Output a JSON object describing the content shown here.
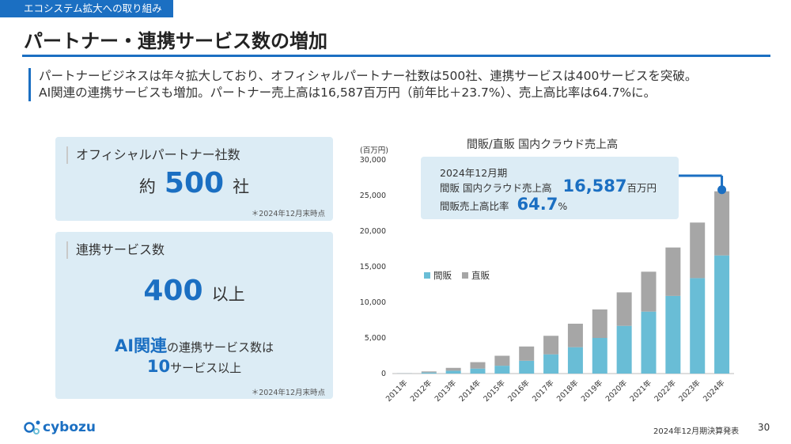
{
  "header": {
    "section_tag": "エコシステム拡大への取り組み",
    "title": "パートナー・連携サービス数の増加"
  },
  "summary": {
    "line1": "パートナービジネスは年々拡大しており、オフィシャルパートナー社数は500社、連携サービスは400サービスを突破。",
    "line2": "AI関連の連携サービスも増加。パートナー売上高は16,587百万円（前年比＋23.7%）、売上高比率は64.7%に。"
  },
  "partners_card": {
    "label": "オフィシャルパートナー社数",
    "prefix": "約",
    "value": "500",
    "suffix": "社",
    "note": "＊2024年12月末時点"
  },
  "services_card": {
    "label": "連携サービス数",
    "value": "400",
    "suffix": "以上",
    "ai_highlight": "AI関連",
    "ai_text": "の連携サービス数は",
    "ai_value": "10",
    "ai_suffix": "サービス以上",
    "note": "＊2024年12月末時点"
  },
  "callout": {
    "period": "2024年12月期",
    "sales_label": "間販 国内クラウド売上高",
    "sales_value": "16,587",
    "sales_unit": "百万円",
    "ratio_label": "間販売上高比率",
    "ratio_value": "64.7",
    "ratio_unit": "%"
  },
  "footer": {
    "logo": "cybozu",
    "doc": "2024年12月期決算発表",
    "page": "30"
  },
  "colors": {
    "accent": "#1b6fc2",
    "indirect": "#69bdd6",
    "direct": "#a6a6a6",
    "card_bg": "#dcecf5"
  },
  "chart_data": {
    "type": "bar",
    "stacked": true,
    "title": "間販/直販 国内クラウド売上高",
    "ylabel": "(百万円)",
    "ylim": [
      0,
      30000
    ],
    "yticks": [
      "0",
      "5,000",
      "10,000",
      "15,000",
      "20,000",
      "25,000",
      "30,000"
    ],
    "ytick_values": [
      0,
      5000,
      10000,
      15000,
      20000,
      25000,
      30000
    ],
    "categories": [
      "2011年",
      "2012年",
      "2013年",
      "2014年",
      "2015年",
      "2016年",
      "2017年",
      "2018年",
      "2019年",
      "2020年",
      "2021年",
      "2022年",
      "2023年",
      "2024年"
    ],
    "series": [
      {
        "name": "間販",
        "values": [
          20,
          150,
          400,
          700,
          1100,
          1800,
          2700,
          3700,
          5000,
          6700,
          8700,
          10900,
          13400,
          16587
        ]
      },
      {
        "name": "直販",
        "values": [
          30,
          150,
          400,
          900,
          1400,
          2000,
          2600,
          3300,
          4000,
          4700,
          5600,
          6800,
          7800,
          9000
        ]
      }
    ],
    "legend": "center-left"
  }
}
